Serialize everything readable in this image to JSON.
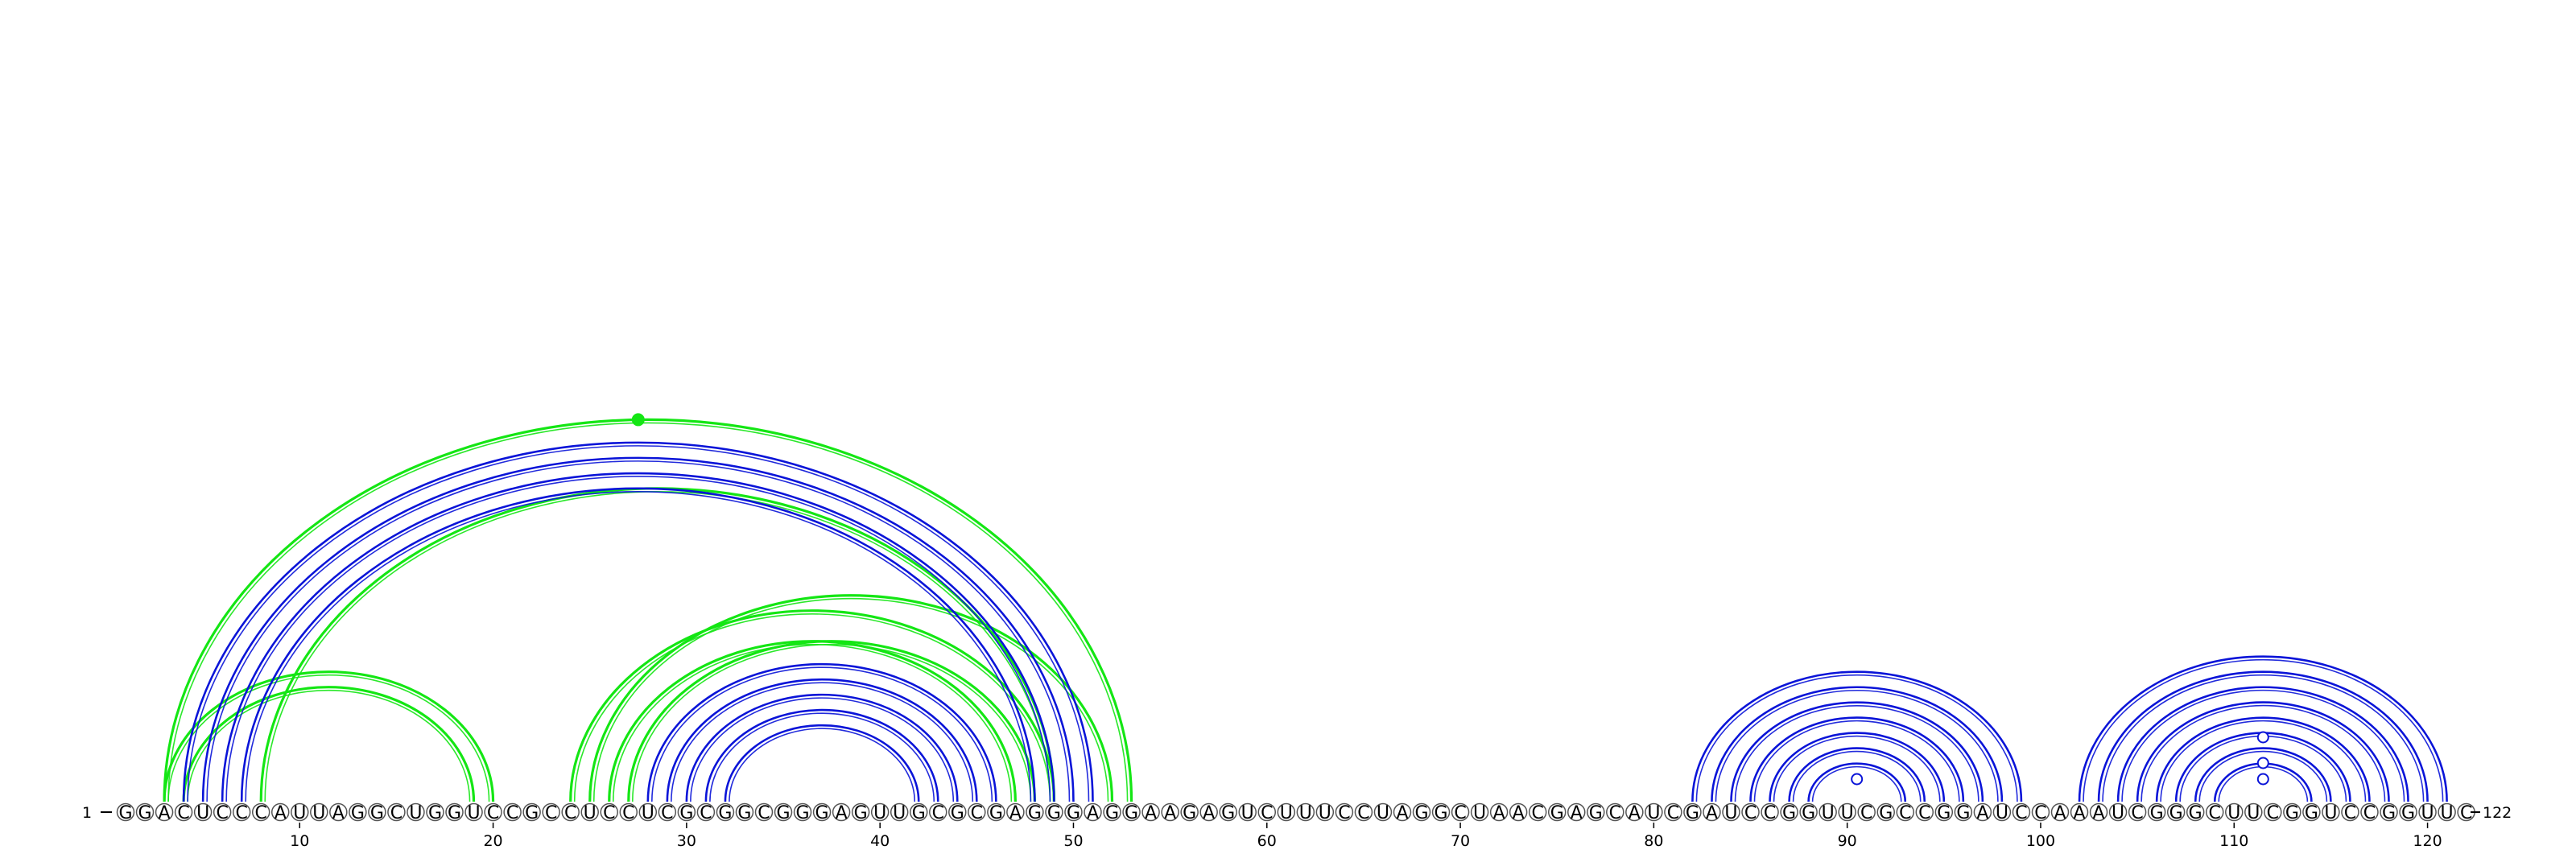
{
  "sequence": "GGACUCCCAUUAGGCUGGUCCGCCUCCUCGCGGCGGGAGUUGCGCGAGGGAGGAAGAGUCUUUCCUAGGCUAACGAGCAUCGAUCCGGUUCGCCGGAUCCAAAUCGGGCUUCGGUCCGGUUC",
  "start_label": "1",
  "end_label": "122",
  "tick_labels": [
    "10",
    "20",
    "30",
    "40",
    "50",
    "60",
    "70",
    "80",
    "90",
    "100",
    "110",
    "120"
  ],
  "colors": {
    "blue": "#0a14d8",
    "green": "#14e614",
    "nucleotide_stroke": "#555555"
  },
  "chart_data": {
    "type": "arc-diagram",
    "length": 122,
    "blue_pairs": [
      [
        4,
        51
      ],
      [
        5,
        50
      ],
      [
        6,
        49
      ],
      [
        7,
        48
      ],
      [
        28,
        46
      ],
      [
        29,
        45
      ],
      [
        30,
        44
      ],
      [
        31,
        43
      ],
      [
        32,
        42
      ],
      [
        82,
        99
      ],
      [
        83,
        98
      ],
      [
        84,
        97
      ],
      [
        85,
        96
      ],
      [
        86,
        95
      ],
      [
        87,
        94
      ],
      [
        88,
        93
      ],
      [
        102,
        121
      ],
      [
        103,
        120
      ],
      [
        104,
        119
      ],
      [
        105,
        118
      ],
      [
        106,
        117
      ],
      [
        107,
        116
      ],
      [
        108,
        115
      ],
      [
        109,
        114
      ]
    ],
    "green_pairs": [
      [
        3,
        53
      ],
      [
        8,
        49
      ],
      [
        3,
        20
      ],
      [
        4,
        19
      ],
      [
        24,
        49
      ],
      [
        25,
        52
      ],
      [
        26,
        47
      ],
      [
        27,
        48
      ]
    ],
    "markers": [
      {
        "pos": 27.5,
        "height": 0.45,
        "color": "green",
        "filled": true
      },
      {
        "pos": 90.5,
        "height": 0.02,
        "color": "blue",
        "filled": false
      },
      {
        "pos": 111.5,
        "height": 0.15,
        "color": "blue",
        "filled": false
      },
      {
        "pos": 111.5,
        "height": 0.07,
        "color": "blue",
        "filled": false
      },
      {
        "pos": 111.5,
        "height": 0.02,
        "color": "blue",
        "filled": false
      }
    ]
  }
}
